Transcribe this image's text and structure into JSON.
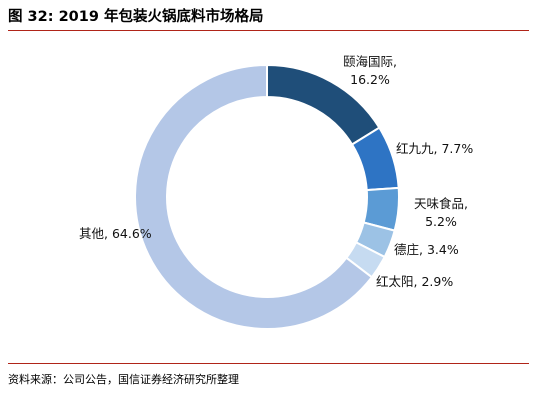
{
  "title": "图 32:  2019 年包装火锅底料市场格局",
  "source": "资料来源：公司公告，国信证券经济研究所整理",
  "chart_data": {
    "type": "pie",
    "donut": true,
    "title": "",
    "start_angle_deg": 0,
    "direction": "clockwise",
    "slices": [
      {
        "name": "颐海国际",
        "value": 16.2,
        "value_label": "16.2%",
        "color": "#1f4e79"
      },
      {
        "name": "红九九",
        "value": 7.7,
        "value_label": "7.7%",
        "color": "#2e74c4"
      },
      {
        "name": "天味食品",
        "value": 5.2,
        "value_label": "5.2%",
        "color": "#5b9bd5"
      },
      {
        "name": "德庄",
        "value": 3.4,
        "value_label": "3.4%",
        "color": "#9cc2e5"
      },
      {
        "name": "红太阳",
        "value": 2.9,
        "value_label": "2.9%",
        "color": "#c6dbf1"
      },
      {
        "name": "其他",
        "value": 64.6,
        "value_label": "64.6%",
        "color": "#b4c7e7"
      }
    ]
  }
}
